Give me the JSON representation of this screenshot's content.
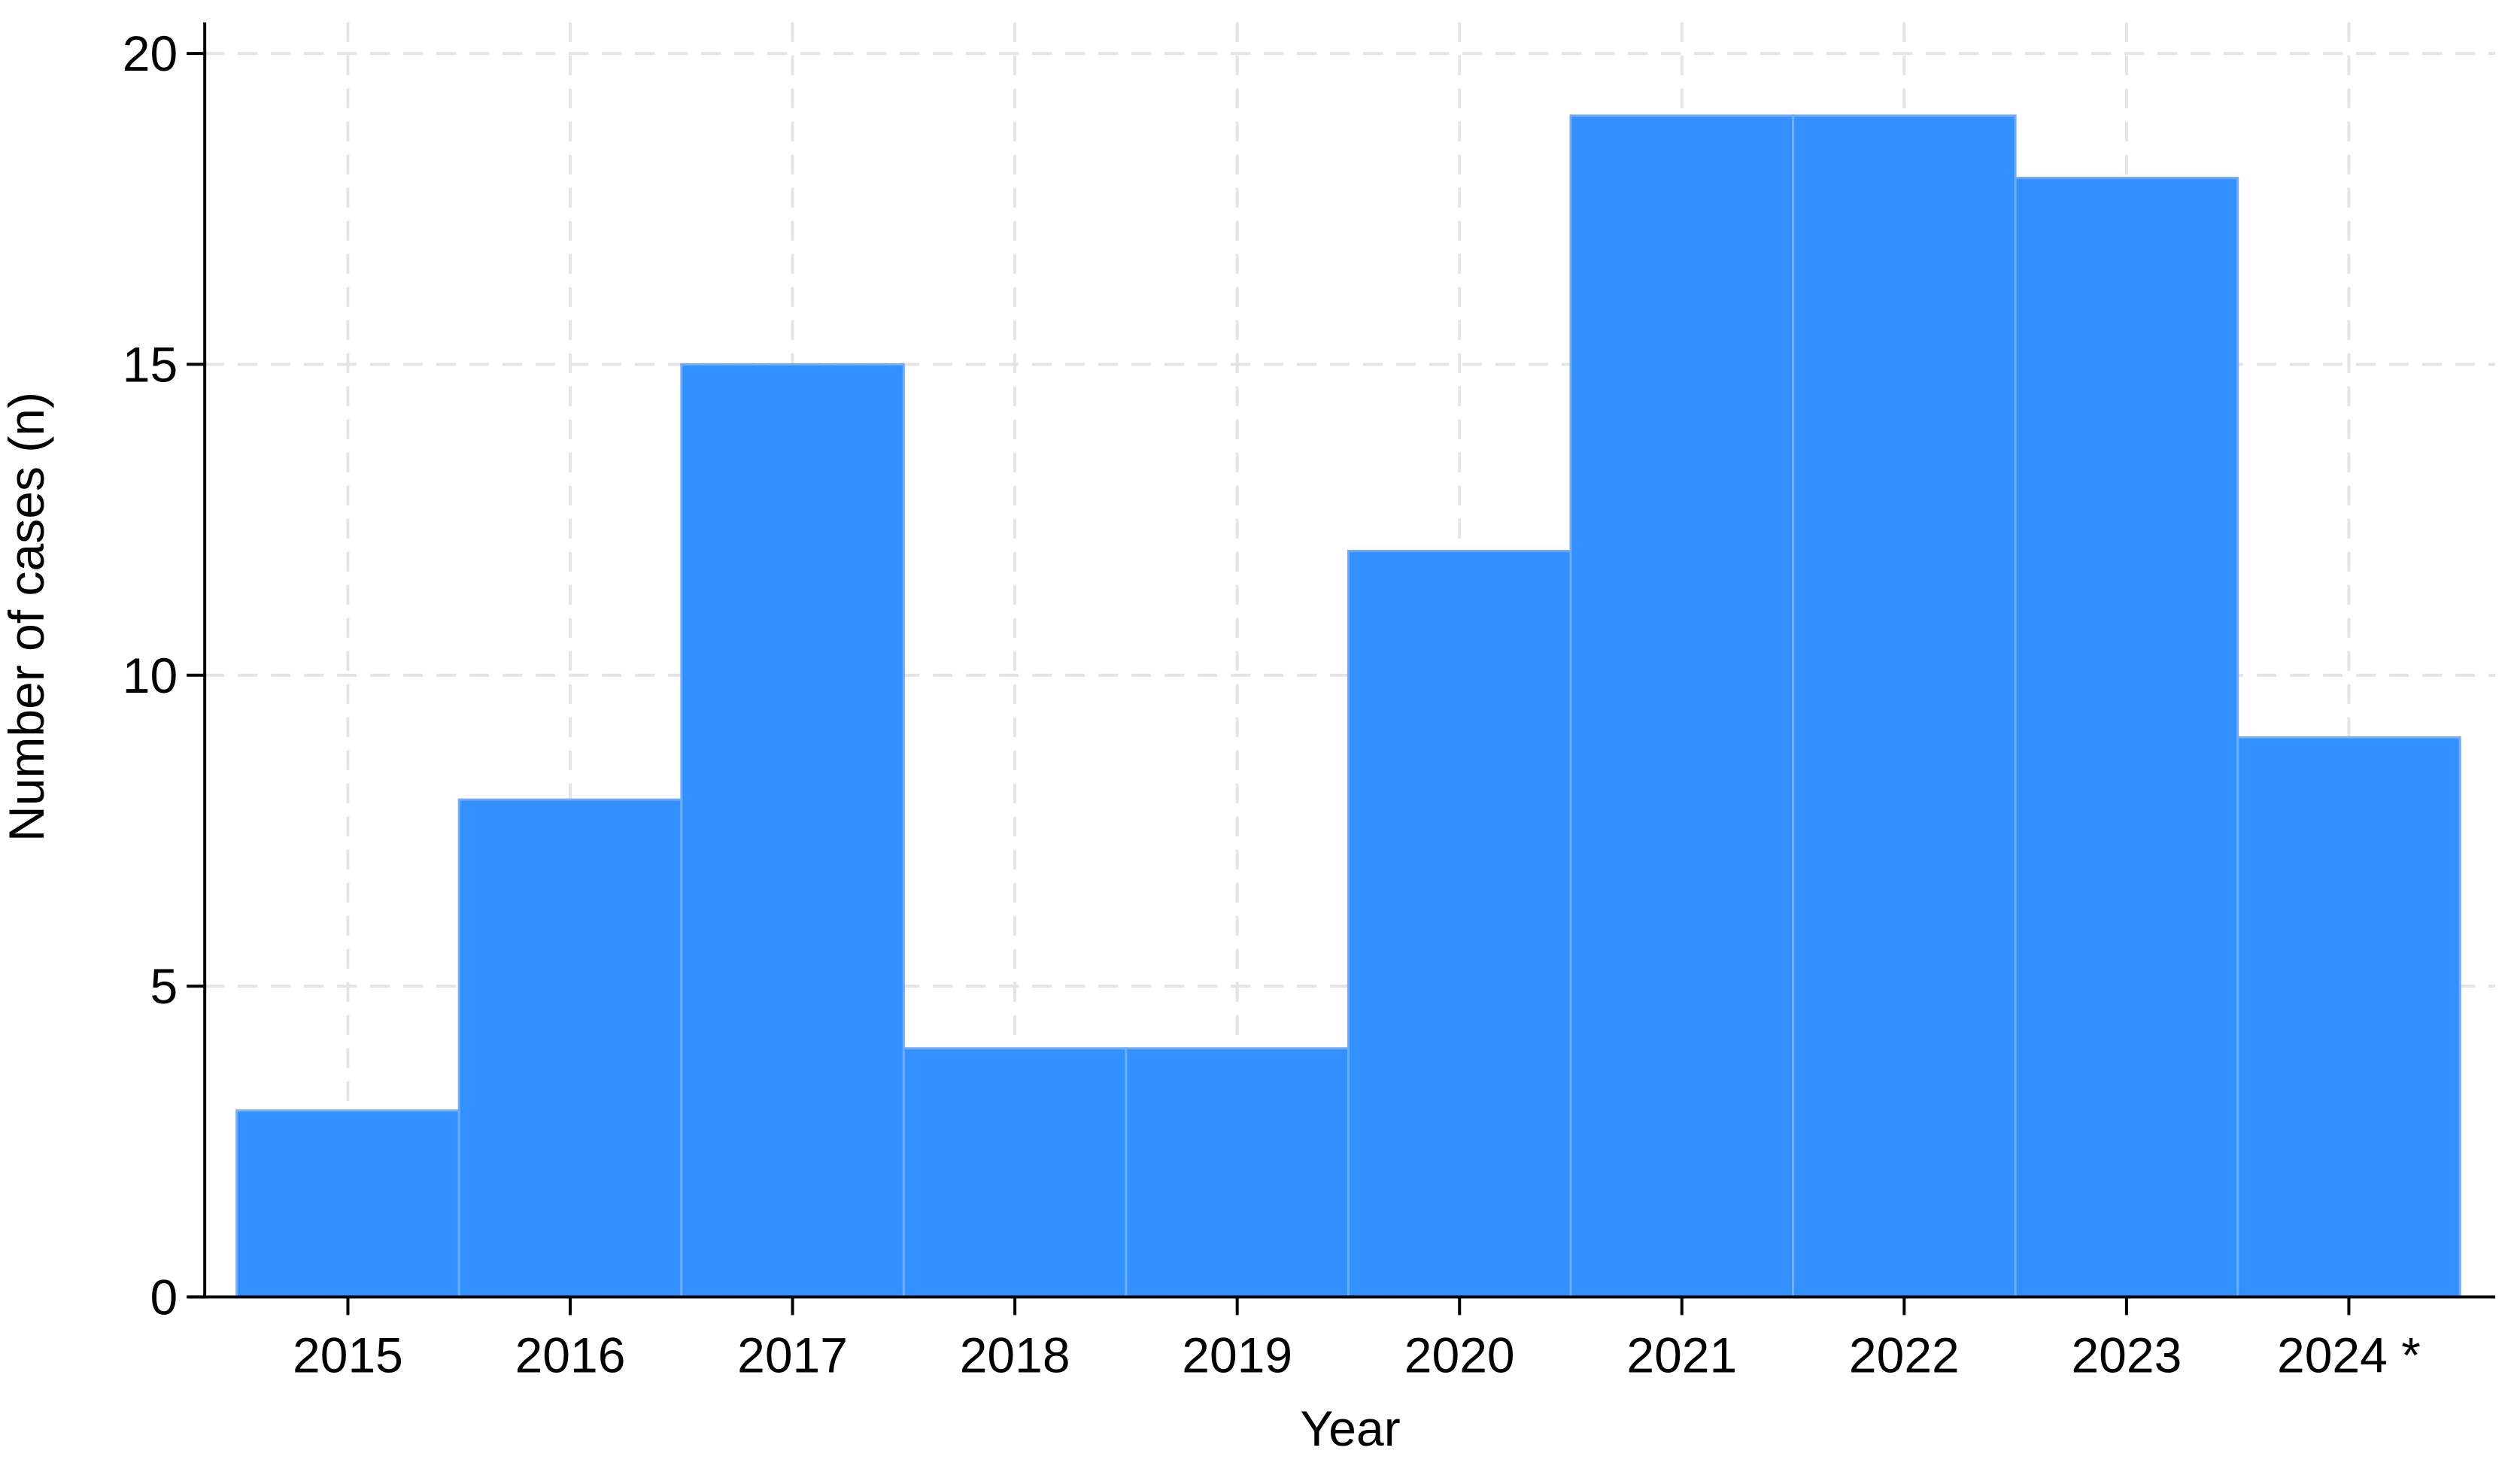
{
  "chart_data": {
    "type": "bar",
    "x_label": "Year",
    "y_label": "Number of cases (n)",
    "categories": [
      "2015",
      "2016",
      "2017",
      "2018",
      "2019",
      "2020",
      "2021",
      "2022",
      "2023",
      "2024 *"
    ],
    "values": [
      3,
      8,
      15,
      4,
      4,
      12,
      19,
      19,
      18,
      9
    ],
    "color": "#3391ff",
    "edge_color": "#6eacff",
    "ylim": [
      0,
      20.5
    ],
    "yticks": [
      0,
      5,
      10,
      15,
      20
    ],
    "grid": true
  }
}
